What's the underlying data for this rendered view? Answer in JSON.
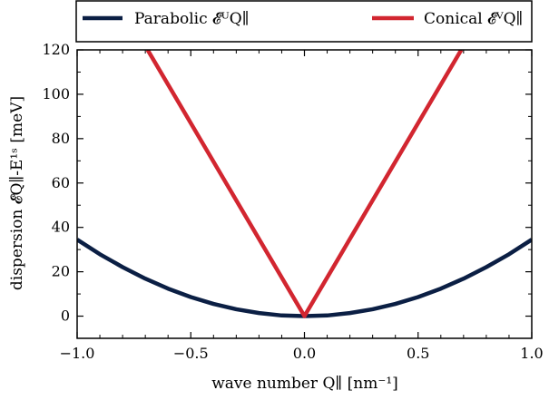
{
  "chart_data": {
    "type": "line",
    "xlabel": "wave number Q∥ [nm⁻¹]",
    "ylabel": "dispersion 𝓔Q∥-E¹ˢ [meV]",
    "xlim": [
      -1.0,
      1.0
    ],
    "ylim": [
      -10,
      120
    ],
    "xticks": [
      -1.0,
      -0.5,
      0.0,
      0.5,
      1.0
    ],
    "xtick_labels": [
      "−1.0",
      "−0.5",
      "0.0",
      "0.5",
      "1.0"
    ],
    "yticks": [
      0,
      20,
      40,
      60,
      80,
      100,
      120
    ],
    "ytick_labels": [
      "0",
      "20",
      "40",
      "60",
      "80",
      "100",
      "120"
    ],
    "grid": false,
    "legend_position": "top, outside",
    "series": [
      {
        "name": "Parabolic 𝓔ᵁQ∥",
        "color": "#0b1f44",
        "x": [
          -1.0,
          -0.9,
          -0.8,
          -0.7,
          -0.6,
          -0.5,
          -0.4,
          -0.3,
          -0.2,
          -0.1,
          0.0,
          0.1,
          0.2,
          0.3,
          0.4,
          0.5,
          0.6,
          0.7,
          0.8,
          0.9,
          1.0
        ],
        "y": [
          34.5,
          27.9,
          22.1,
          16.9,
          12.4,
          8.6,
          5.5,
          3.1,
          1.4,
          0.3,
          0.0,
          0.3,
          1.4,
          3.1,
          5.5,
          8.6,
          12.4,
          16.9,
          22.1,
          27.9,
          34.5
        ]
      },
      {
        "name": "Conical 𝓔ⱽQ∥",
        "color": "#d22630",
        "x": [
          -0.69,
          -0.5,
          -0.25,
          0.0,
          0.25,
          0.5,
          0.69
        ],
        "y": [
          120,
          87,
          43.5,
          0,
          43.5,
          87,
          120
        ]
      }
    ]
  }
}
